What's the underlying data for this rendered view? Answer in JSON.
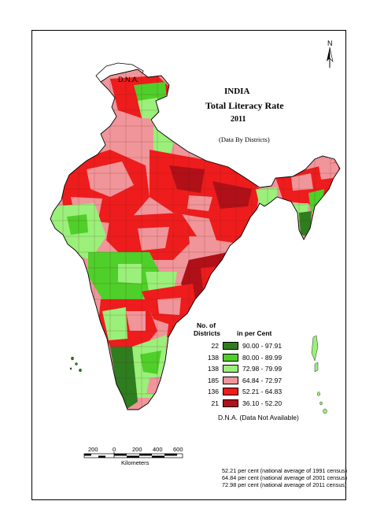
{
  "title": {
    "country": "INDIA",
    "main": "Total Literacy Rate",
    "year": "2011",
    "subtitle": "(Data By Districts)"
  },
  "north_label": "N",
  "dna_label": "D.N.A.",
  "legend": {
    "count_header_line1": "No. of",
    "count_header_line2": "Districts",
    "unit_header": "in per Cent",
    "classes": [
      {
        "count": "22",
        "range": "90.00 - 97.91",
        "color": "#2e7d1f"
      },
      {
        "count": "138",
        "range": "80.00 - 89.99",
        "color": "#4fcf2a"
      },
      {
        "count": "138",
        "range": "72.98 - 79.99",
        "color": "#9af07a"
      },
      {
        "count": "185",
        "range": "64.84 - 72.97",
        "color": "#f0959a"
      },
      {
        "count": "136",
        "range": "52.21 - 64.83",
        "color": "#ee1c1c"
      },
      {
        "count": "21",
        "range": "36.10 - 52.20",
        "color": "#b01018"
      }
    ],
    "dna_note": "D.N.A. (Data Not Available)"
  },
  "scale_bar": {
    "ticks": [
      "200",
      "0",
      "200",
      "400",
      "600"
    ],
    "unit": "Kilometers"
  },
  "national_averages": [
    "52.21 per cent (national average of 1991 census)",
    "64.84 per cent (national average of 2001 census)",
    "72.98 per cent (national average of 2011 census)"
  ]
}
